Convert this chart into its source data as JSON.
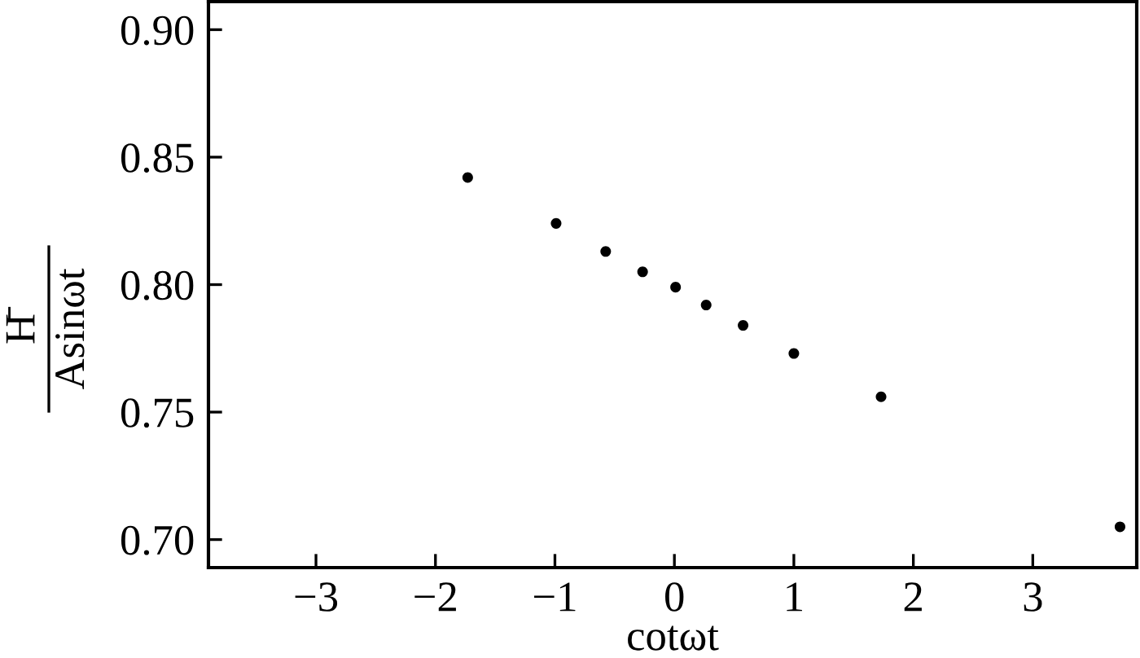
{
  "chart_data": {
    "type": "scatter",
    "xlabel": "cotωt",
    "ylabel": "H̄\nAsinωt",
    "x": [
      -1.73,
      -0.99,
      -0.575,
      -0.266,
      0.01,
      0.266,
      0.575,
      1.0,
      1.73,
      3.73
    ],
    "values": [
      0.842,
      0.824,
      0.813,
      0.805,
      0.799,
      0.792,
      0.784,
      0.773,
      0.756,
      0.705
    ],
    "color": "#000000",
    "marker": "circle",
    "xlim": [
      -3.9,
      3.87
    ],
    "ylim": [
      0.689,
      0.911
    ],
    "xticks": [
      {
        "value": -3,
        "label": "−3"
      },
      {
        "value": -2,
        "label": "−2"
      },
      {
        "value": -1,
        "label": "−1"
      },
      0,
      1,
      2,
      3
    ],
    "yticks": [
      {
        "value": 0.7,
        "label": "0.70"
      },
      {
        "value": 0.75,
        "label": "0.75"
      },
      {
        "value": 0.8,
        "label": "0.80"
      },
      {
        "value": 0.85,
        "label": "0.85"
      },
      {
        "value": 0.9,
        "label": "0.90"
      }
    ],
    "grid": false,
    "legend": false
  }
}
